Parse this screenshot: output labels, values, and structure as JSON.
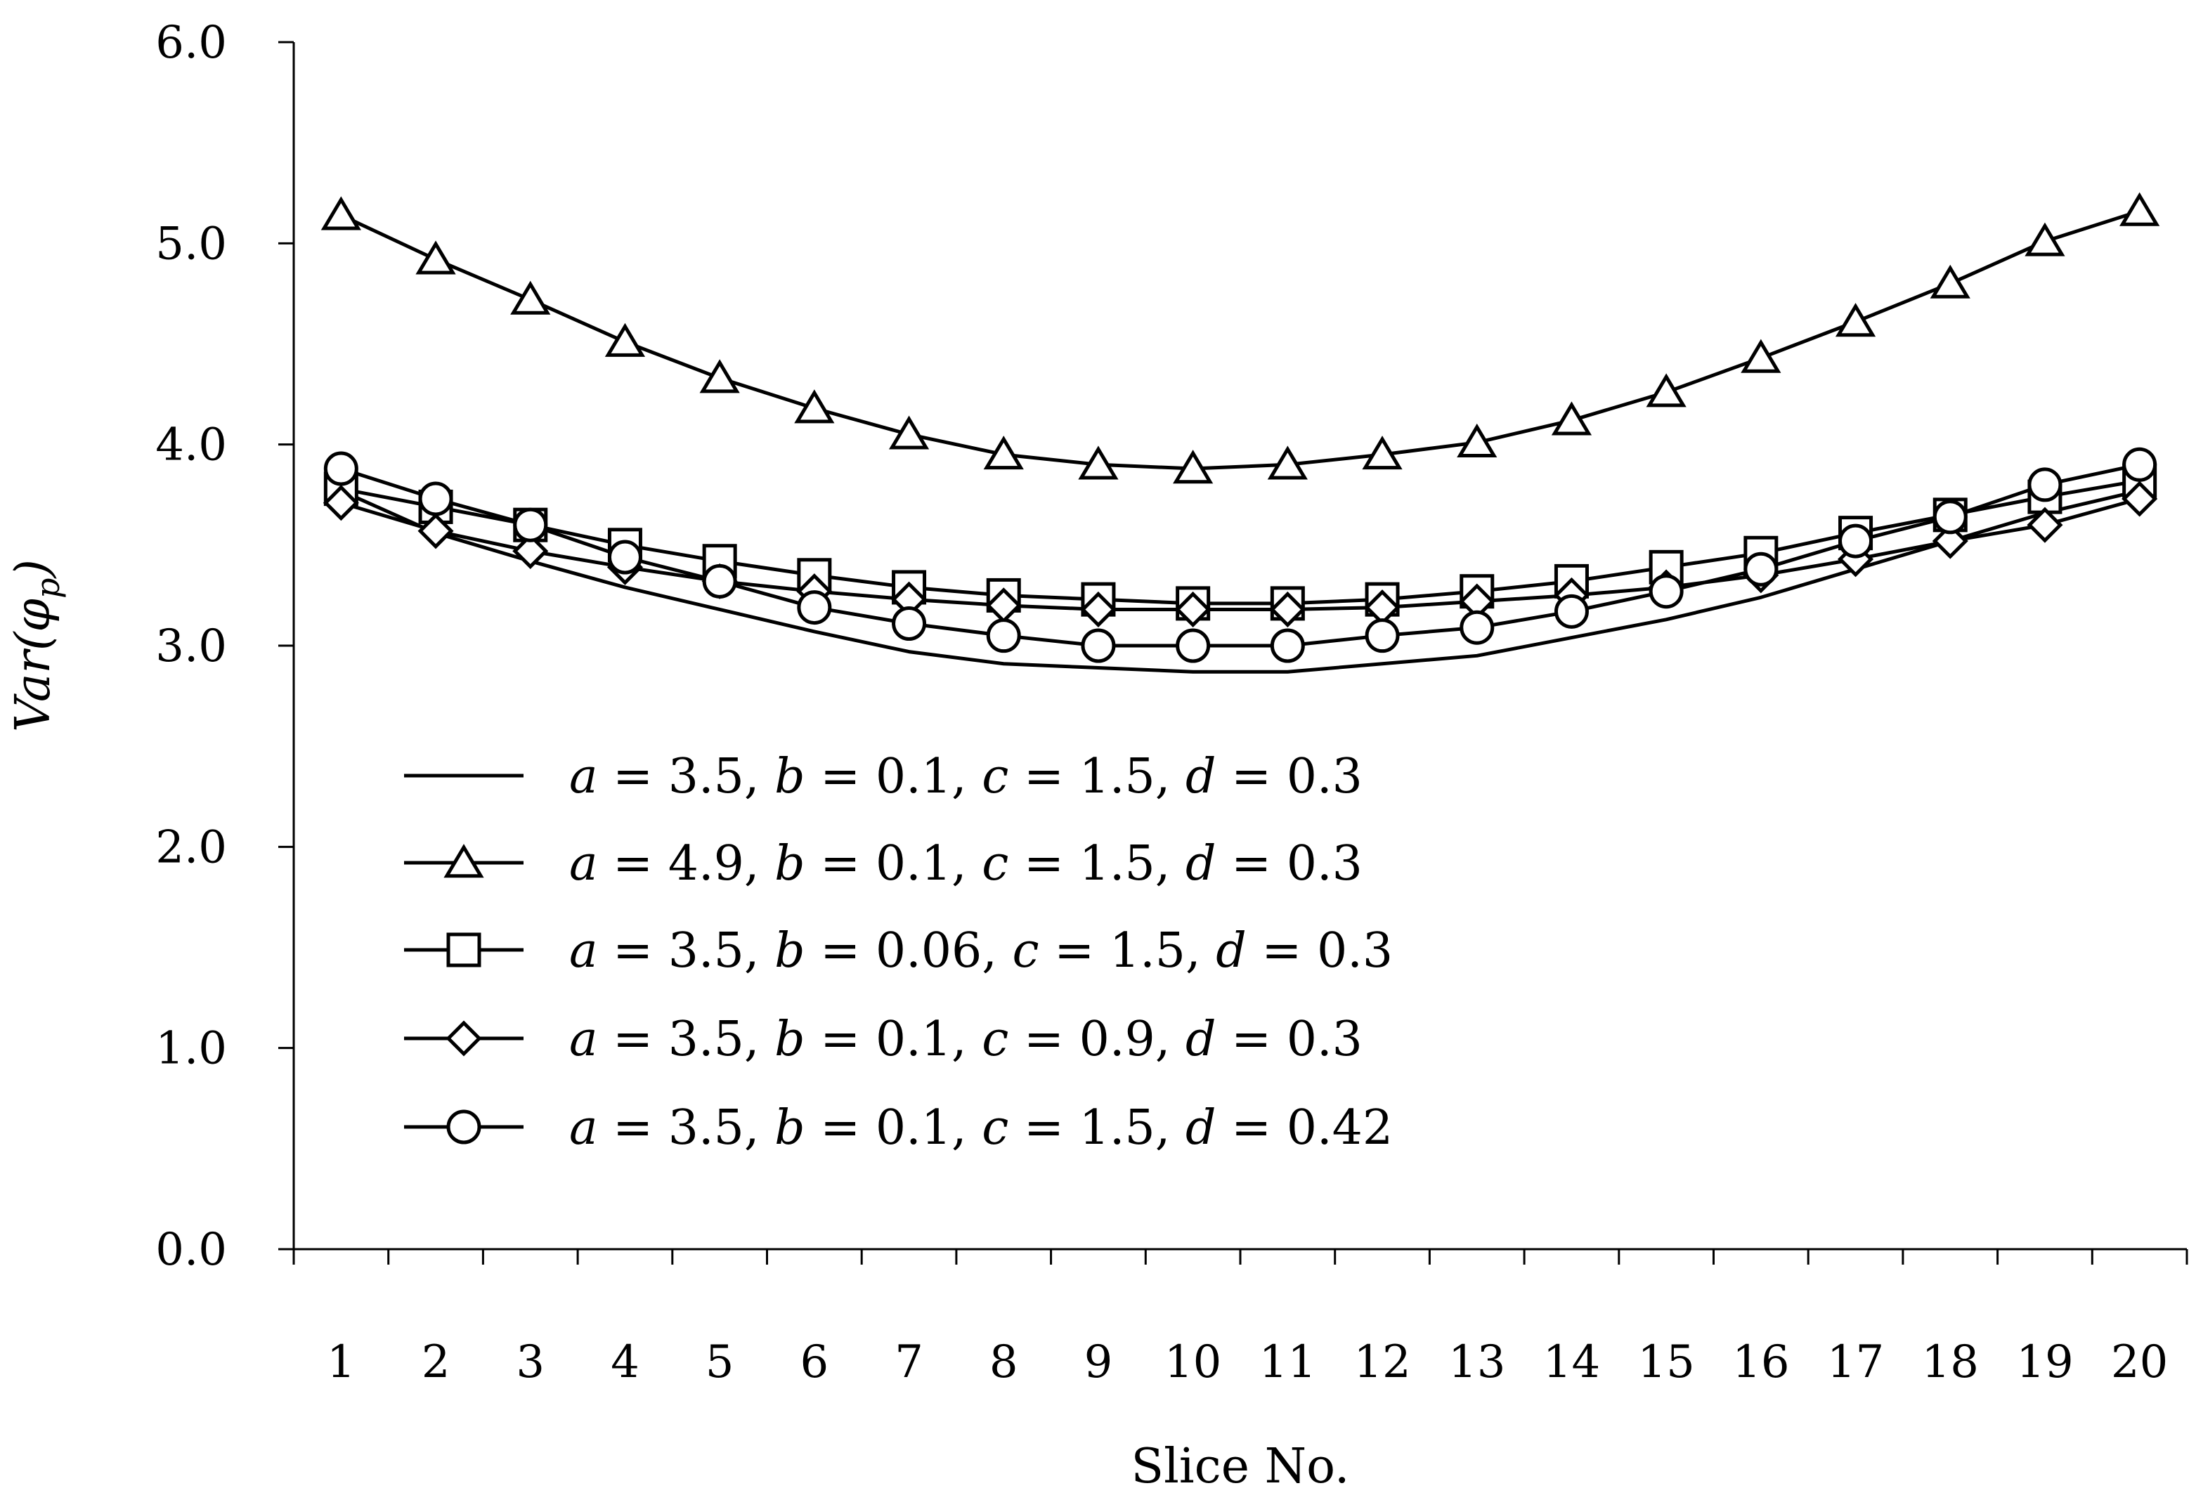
{
  "chart_data": {
    "type": "line",
    "title": "",
    "xlabel": "Slice No.",
    "ylabel": "Var(φp)",
    "ylabel_main": "Var(",
    "ylabel_symbol": "φ",
    "ylabel_sub": "p",
    "ylabel_close": ")",
    "ylim": [
      0,
      6
    ],
    "y_ticks": [
      "0.0",
      "1.0",
      "2.0",
      "3.0",
      "4.0",
      "5.0",
      "6.0"
    ],
    "categories": [
      "1",
      "2",
      "3",
      "4",
      "5",
      "6",
      "7",
      "8",
      "9",
      "10",
      "11",
      "12",
      "13",
      "14",
      "15",
      "16",
      "17",
      "18",
      "19",
      "20"
    ],
    "grid": false,
    "legend_position": "center-left",
    "series": [
      {
        "marker": "none",
        "legend": {
          "a": "3.5",
          "b": "0.1",
          "c": "1.5",
          "d": "0.3"
        },
        "values": [
          3.77,
          3.56,
          3.42,
          3.29,
          3.18,
          3.07,
          2.97,
          2.91,
          2.89,
          2.87,
          2.87,
          2.91,
          2.95,
          3.04,
          3.13,
          3.24,
          3.38,
          3.52,
          3.66,
          3.77
        ]
      },
      {
        "marker": "triangle",
        "legend": {
          "a": "4.9",
          "b": "0.1",
          "c": "1.5",
          "d": "0.3"
        },
        "values": [
          5.14,
          4.92,
          4.72,
          4.51,
          4.33,
          4.18,
          4.05,
          3.95,
          3.9,
          3.88,
          3.9,
          3.95,
          4.01,
          4.12,
          4.26,
          4.43,
          4.61,
          4.8,
          5.01,
          5.16
        ]
      },
      {
        "marker": "square",
        "legend": {
          "a": "3.5",
          "b": "0.06",
          "c": "1.5",
          "d": "0.3"
        },
        "values": [
          3.78,
          3.69,
          3.6,
          3.5,
          3.42,
          3.35,
          3.29,
          3.25,
          3.23,
          3.21,
          3.21,
          3.23,
          3.27,
          3.32,
          3.39,
          3.46,
          3.56,
          3.65,
          3.74,
          3.82
        ]
      },
      {
        "marker": "diamond",
        "legend": {
          "a": "3.5",
          "b": "0.1",
          "c": "0.9",
          "d": "0.3"
        },
        "values": [
          3.71,
          3.57,
          3.47,
          3.39,
          3.32,
          3.27,
          3.23,
          3.2,
          3.18,
          3.18,
          3.18,
          3.19,
          3.22,
          3.25,
          3.29,
          3.35,
          3.43,
          3.52,
          3.6,
          3.73
        ]
      },
      {
        "marker": "circle",
        "legend": {
          "a": "3.5",
          "b": "0.1",
          "c": "1.5",
          "d": "0.42"
        },
        "values": [
          3.88,
          3.73,
          3.6,
          3.44,
          3.32,
          3.19,
          3.11,
          3.05,
          3.0,
          3.0,
          3.0,
          3.05,
          3.09,
          3.17,
          3.27,
          3.38,
          3.52,
          3.64,
          3.8,
          3.9
        ]
      }
    ]
  }
}
